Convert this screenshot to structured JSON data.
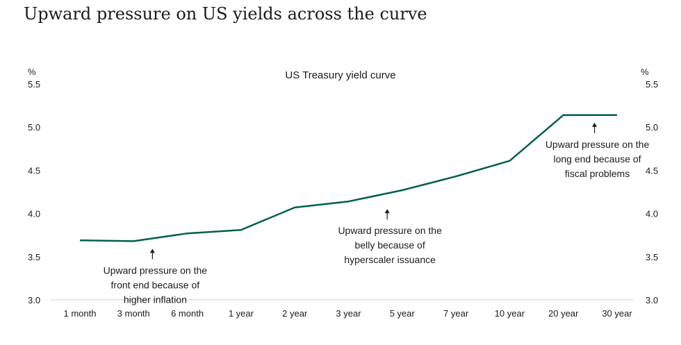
{
  "page": {
    "title": "Upward pressure on US yields across the curve"
  },
  "chart_data": {
    "type": "line",
    "title": "US Treasury yield curve",
    "ylabel": "%",
    "ylabel_right": "%",
    "categories": [
      "1 month",
      "3 month",
      "6 month",
      "1 year",
      "2 year",
      "3 year",
      "5 year",
      "7 year",
      "10 year",
      "20 year",
      "30 year"
    ],
    "series": [
      {
        "values": [
          3.69,
          3.68,
          3.77,
          3.81,
          4.07,
          4.14,
          4.27,
          4.43,
          4.61,
          5.14,
          5.14
        ],
        "color": "#005f4b"
      }
    ],
    "ylim": [
      3.0,
      5.5
    ],
    "yticks": [
      "3.0",
      "3.5",
      "4.0",
      "4.5",
      "5.0",
      "5.5"
    ],
    "grid": false,
    "annotations": [
      {
        "lines": [
          "Upward pressure on the",
          "front end because of",
          "higher inflation"
        ],
        "category_index": 1.35,
        "value": 3.68
      },
      {
        "lines": [
          "Upward pressure on the",
          "belly because of",
          "hyperscaler issuance"
        ],
        "category_index": 5.72,
        "value": 4.14
      },
      {
        "lines": [
          "Upward pressure on the",
          "long end because of",
          "fiscal problems"
        ],
        "category_index": 9.58,
        "value": 5.14
      }
    ]
  }
}
